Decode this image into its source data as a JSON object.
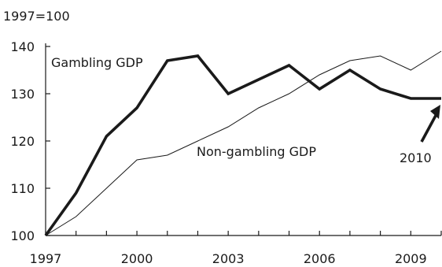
{
  "chart_data": {
    "type": "line",
    "title": "",
    "ylabel": "1997=100",
    "xlabel": "",
    "xlim": [
      1997,
      2010
    ],
    "ylim": [
      100,
      140
    ],
    "x_ticks": [
      1997,
      2000,
      2003,
      2006,
      2009
    ],
    "y_ticks": [
      100,
      110,
      120,
      130,
      140
    ],
    "grid": false,
    "legend": "none",
    "x": [
      1997,
      1998,
      1999,
      2000,
      2001,
      2002,
      2003,
      2004,
      2005,
      2006,
      2007,
      2008,
      2009,
      2010
    ],
    "series": [
      {
        "name": "Gambling GDP",
        "values": [
          100,
          109,
          121,
          127,
          137,
          138,
          130,
          133,
          136,
          131,
          135,
          131,
          129,
          129
        ],
        "color": "#1a1a1a",
        "style": "bold"
      },
      {
        "name": "Non-gambling GDP",
        "values": [
          100,
          104,
          110,
          116,
          117,
          120,
          123,
          127,
          130,
          134,
          137,
          138,
          135,
          139
        ],
        "color": "#1a1a1a",
        "style": "thin"
      }
    ],
    "annotations": [
      {
        "text": "2010",
        "points_to_x": 2010
      }
    ]
  }
}
